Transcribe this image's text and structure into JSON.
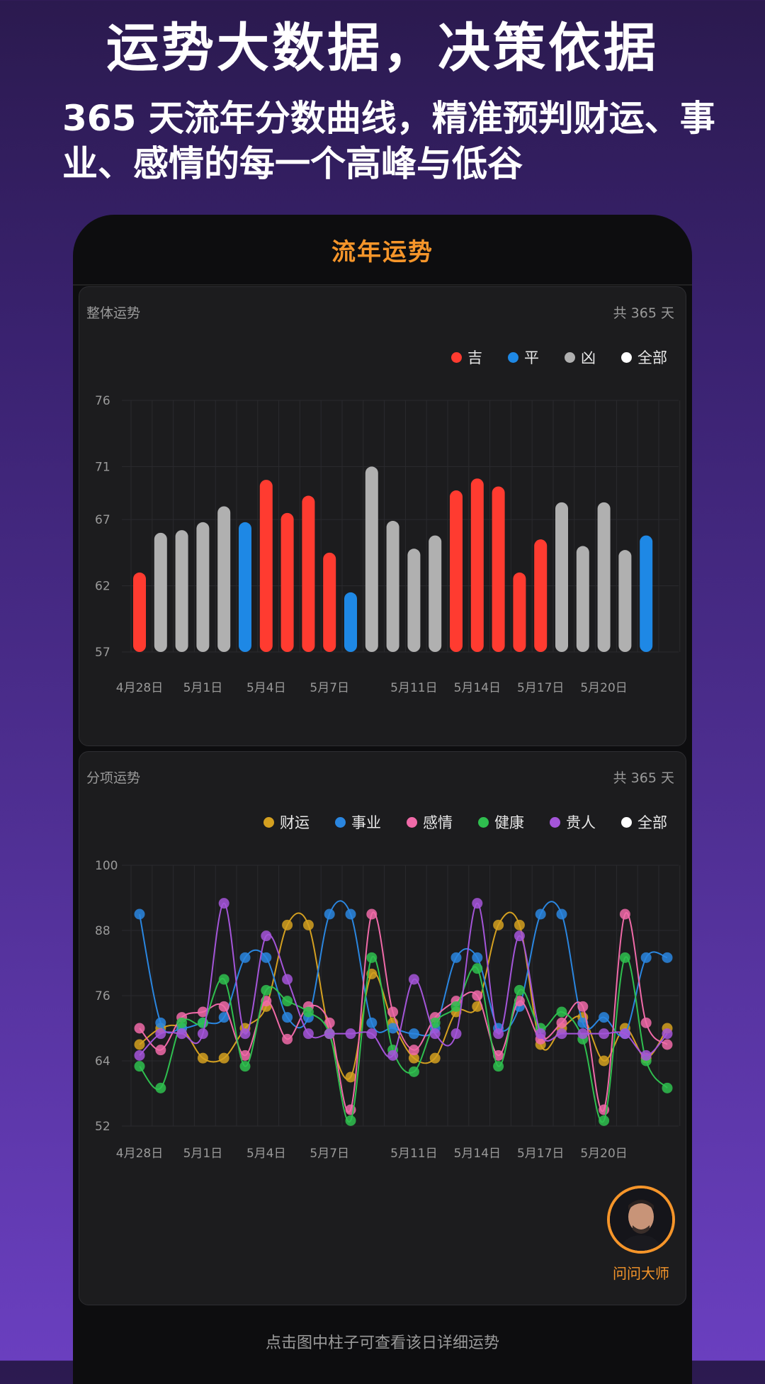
{
  "promo": {
    "headline": "运势大数据，决策依据",
    "subline": "365 天流年分数曲线，精准预判财运、事业、感情的每一个高峰与低谷"
  },
  "nav": {
    "title": "流年运势"
  },
  "overall": {
    "title": "整体运势",
    "count": "共 365 天",
    "legend": [
      {
        "label": "吉",
        "color": "#ff3b30"
      },
      {
        "label": "平",
        "color": "#1e88e5"
      },
      {
        "label": "凶",
        "color": "#b0b0b0"
      },
      {
        "label": "全部",
        "color": "#ffffff"
      }
    ]
  },
  "sub": {
    "title": "分项运势",
    "count": "共 365 天",
    "legend": [
      {
        "label": "财运",
        "color": "#d4a020"
      },
      {
        "label": "事业",
        "color": "#2a86e0"
      },
      {
        "label": "感情",
        "color": "#f06aa8"
      },
      {
        "label": "健康",
        "color": "#2fbf4f"
      },
      {
        "label": "贵人",
        "color": "#a455d9"
      },
      {
        "label": "全部",
        "color": "#ffffff"
      }
    ]
  },
  "master": {
    "label": "问问大师",
    "icon": "master-avatar"
  },
  "hint": "点击图中柱子可查看该日详细运势",
  "chart_data": [
    {
      "type": "bar",
      "title": "整体运势",
      "ylim": [
        57,
        76
      ],
      "yticks": [
        76,
        71,
        67,
        62,
        57
      ],
      "xtick_labels": [
        "4月28日",
        "5月1日",
        "5月4日",
        "5月7日",
        "5月11日",
        "5月14日",
        "5月17日",
        "5月20日"
      ],
      "values": [
        63,
        66,
        66.2,
        66.8,
        68,
        66.8,
        70,
        67.5,
        68.8,
        64.5,
        61.5,
        71,
        66.9,
        64.8,
        65.8,
        69.2,
        70.1,
        69.5,
        63,
        65.5,
        68.3,
        65,
        68.3,
        64.7,
        65.8
      ],
      "categories_class": [
        "吉",
        "凶",
        "凶",
        "凶",
        "凶",
        "平",
        "吉",
        "吉",
        "吉",
        "吉",
        "平",
        "凶",
        "凶",
        "凶",
        "凶",
        "吉",
        "吉",
        "吉",
        "吉",
        "吉",
        "凶",
        "凶",
        "凶",
        "凶",
        "平"
      ],
      "colors": {
        "吉": "#ff3b30",
        "平": "#1e88e5",
        "凶": "#b0b0b0"
      }
    },
    {
      "type": "line",
      "title": "分项运势",
      "ylim": [
        52,
        100
      ],
      "yticks": [
        100,
        88,
        76,
        64,
        52
      ],
      "xtick_labels": [
        "4月28日",
        "5月1日",
        "5月4日",
        "5月7日",
        "5月11日",
        "5月14日",
        "5月17日",
        "5月20日"
      ],
      "series": [
        {
          "name": "财运",
          "color": "#d4a020",
          "values": [
            67,
            70,
            70,
            64.5,
            64.5,
            70,
            74,
            89,
            89,
            69,
            61,
            80,
            71,
            64.5,
            64.5,
            73,
            74,
            89,
            89,
            67,
            70,
            72,
            64,
            70,
            64.5,
            70
          ]
        },
        {
          "name": "事业",
          "color": "#2a86e0",
          "values": [
            91,
            71,
            70,
            71,
            72,
            83,
            83,
            72,
            72,
            91,
            91,
            71,
            70,
            69,
            70,
            83,
            83,
            70,
            74,
            91,
            91,
            71,
            72,
            69,
            83,
            83
          ]
        },
        {
          "name": "感情",
          "color": "#f06aa8",
          "values": [
            70,
            66,
            72,
            73,
            74,
            65,
            75,
            68,
            74,
            71,
            55,
            91,
            73,
            66,
            72,
            75,
            76,
            65,
            75,
            68,
            71,
            74,
            55,
            91,
            71,
            67
          ]
        },
        {
          "name": "健康",
          "color": "#2fbf4f",
          "values": [
            63,
            59,
            71,
            71,
            79,
            63,
            77,
            75,
            73,
            69,
            53,
            83,
            66,
            62,
            71,
            74,
            81,
            63,
            77,
            70,
            73,
            68,
            53,
            83,
            64,
            59
          ]
        },
        {
          "name": "贵人",
          "color": "#a455d9",
          "values": [
            65,
            69,
            69,
            69,
            93,
            69,
            87,
            79,
            69,
            69,
            69,
            69,
            65,
            79,
            69,
            69,
            93,
            69,
            87,
            69,
            69,
            69,
            69,
            69,
            65,
            69
          ]
        }
      ]
    }
  ]
}
